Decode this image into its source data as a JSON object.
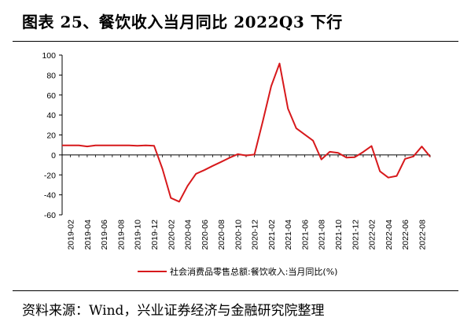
{
  "header": {
    "title": "图表 25、餐饮收入当月同比 2022Q3 下行"
  },
  "footer": {
    "source": "资料来源：Wind，兴业证券经济与金融研究院整理"
  },
  "colors": {
    "series": "#d7191c",
    "axis": "#000000"
  },
  "chart_data": {
    "type": "line",
    "title": "",
    "xlabel": "",
    "ylabel": "",
    "ylim": [
      -60,
      100
    ],
    "yticks": [
      -60,
      -40,
      -20,
      0,
      20,
      40,
      60,
      80,
      100
    ],
    "grid": false,
    "legend_position": "bottom",
    "x_tick_labels": [
      "2019-02",
      "2019-04",
      "2019-06",
      "2019-08",
      "2019-10",
      "2019-12",
      "2020-02",
      "2020-04",
      "2020-06",
      "2020-08",
      "2020-10",
      "2020-12",
      "2021-02",
      "2021-04",
      "2021-06",
      "2021-08",
      "2021-10",
      "2021-12",
      "2022-02",
      "2022-04",
      "2022-06",
      "2022-08"
    ],
    "x": [
      "2019-01",
      "2019-02",
      "2019-03",
      "2019-04",
      "2019-05",
      "2019-06",
      "2019-07",
      "2019-08",
      "2019-09",
      "2019-10",
      "2019-11",
      "2019-12",
      "2020-01",
      "2020-02",
      "2020-03",
      "2020-04",
      "2020-05",
      "2020-06",
      "2020-07",
      "2020-08",
      "2020-09",
      "2020-10",
      "2020-11",
      "2020-12",
      "2021-01",
      "2021-02",
      "2021-03",
      "2021-04",
      "2021-05",
      "2021-06",
      "2021-07",
      "2021-08",
      "2021-09",
      "2021-10",
      "2021-11",
      "2021-12",
      "2022-01",
      "2022-02",
      "2022-03",
      "2022-04",
      "2022-05",
      "2022-06",
      "2022-07",
      "2022-08",
      "2022-09"
    ],
    "series": [
      {
        "name": "社会消费品零售总额:餐饮收入:当月同比(%)",
        "values": [
          9.6,
          9.6,
          9.6,
          8.5,
          9.5,
          9.5,
          9.5,
          9.5,
          9.5,
          9.1,
          9.5,
          9.1,
          -14.0,
          -43.1,
          -46.8,
          -31.1,
          -18.9,
          -15.2,
          -11.0,
          -7.0,
          -2.9,
          0.8,
          -0.6,
          0.4,
          34.0,
          68.9,
          91.6,
          46.4,
          26.6,
          20.5,
          14.3,
          -4.5,
          3.1,
          2.0,
          -2.7,
          -2.2,
          3.0,
          8.9,
          -16.4,
          -22.7,
          -21.1,
          -4.0,
          -1.5,
          8.4,
          -1.7
        ]
      }
    ]
  }
}
